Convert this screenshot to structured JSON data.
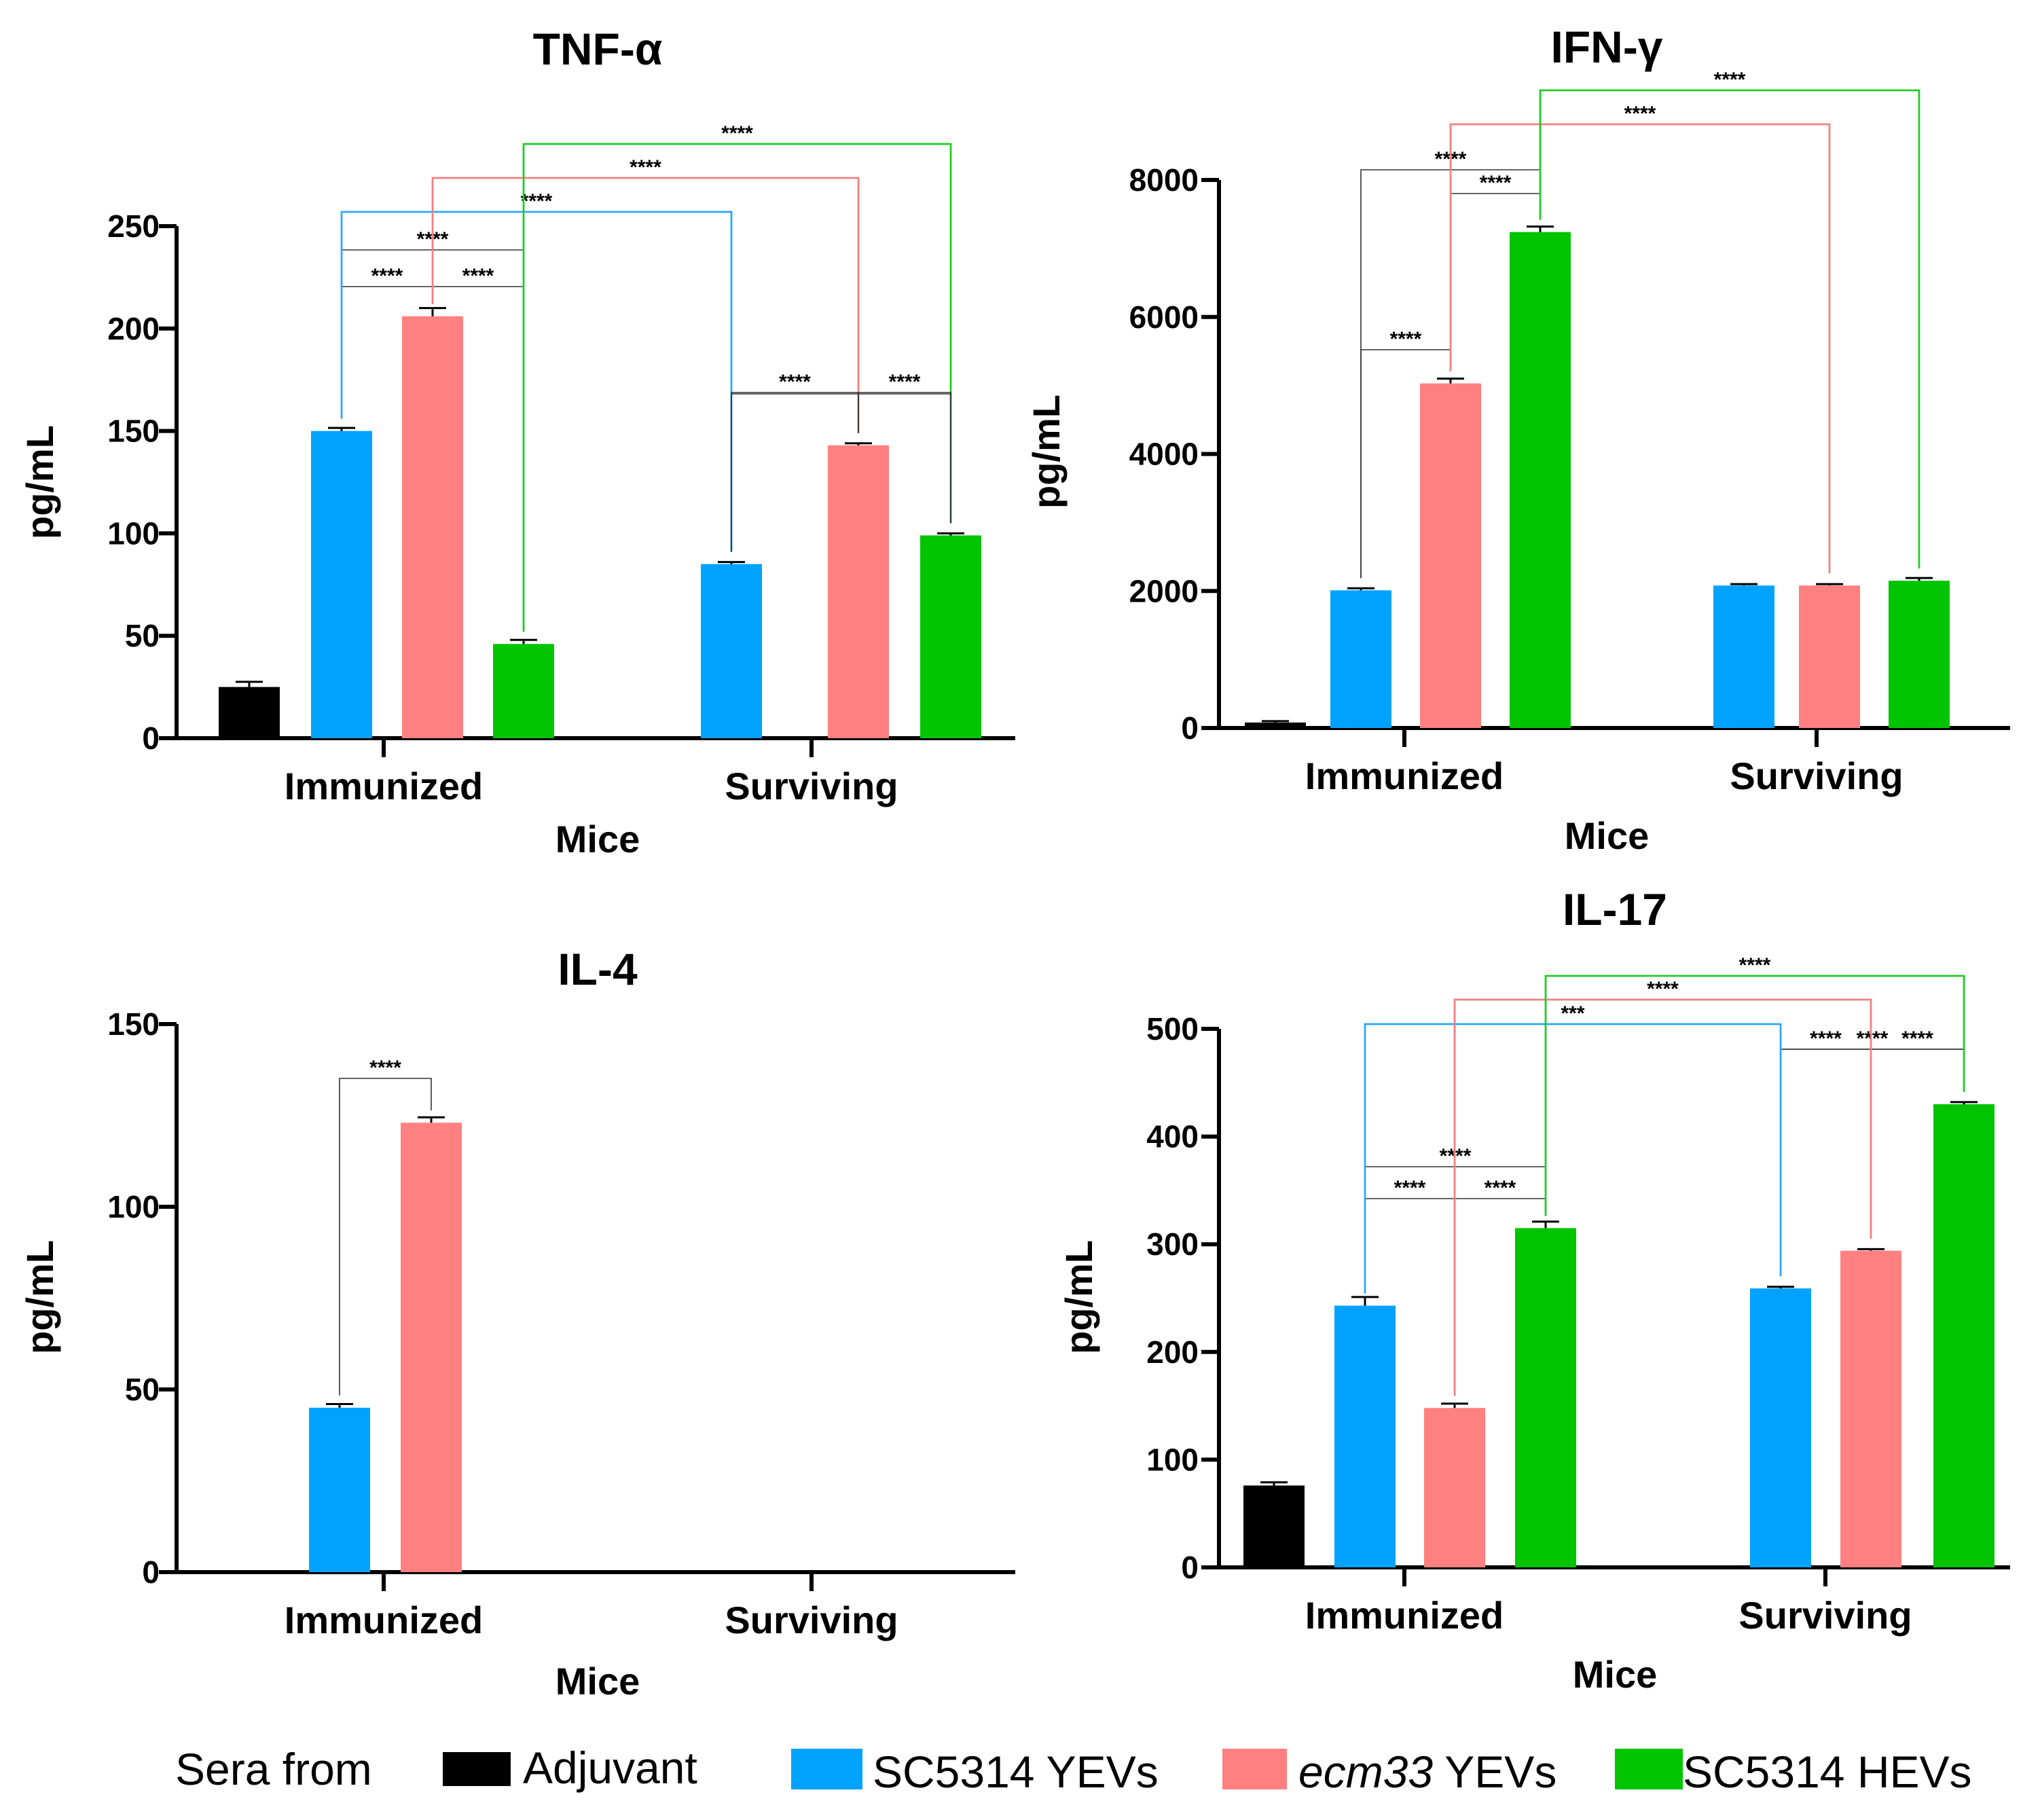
{
  "chart_data": [
    {
      "type": "bar",
      "title": "TNF-α",
      "xlabel": "Mice",
      "ylabel": "pg/mL",
      "ylim": [
        0,
        250
      ],
      "yticks": [
        0,
        50,
        100,
        150,
        200,
        250
      ],
      "groups": [
        {
          "label": "Immunized",
          "bars": [
            {
              "series": "Adjuvant",
              "value": 25,
              "err": 2.5
            },
            {
              "series": "SC5314 YEVs",
              "value": 150,
              "err": 1.5
            },
            {
              "series": "ecm33 YEVs",
              "value": 206,
              "err": 4
            },
            {
              "series": "SC5314 HEVs",
              "value": 46,
              "err": 2
            }
          ]
        },
        {
          "label": "Surviving",
          "bars": [
            {
              "series": "SC5314 YEVs",
              "value": 85,
              "err": 1
            },
            {
              "series": "ecm33 YEVs",
              "value": 143,
              "err": 1
            },
            {
              "series": "SC5314 HEVs",
              "value": 99,
              "err": 1
            }
          ]
        }
      ],
      "comparisons": [
        {
          "from": [
            0,
            1
          ],
          "to": [
            0,
            2
          ],
          "label": "****",
          "color": "black"
        },
        {
          "from": [
            0,
            2
          ],
          "to": [
            0,
            3
          ],
          "label": "****",
          "color": "black"
        },
        {
          "from": [
            0,
            1
          ],
          "to": [
            0,
            3
          ],
          "label": "****",
          "color": "black"
        },
        {
          "from": [
            0,
            1
          ],
          "to": [
            1,
            0
          ],
          "label": "****",
          "color": "blue"
        },
        {
          "from": [
            0,
            2
          ],
          "to": [
            1,
            1
          ],
          "label": "****",
          "color": "pink"
        },
        {
          "from": [
            0,
            3
          ],
          "to": [
            1,
            2
          ],
          "label": "****",
          "color": "green"
        },
        {
          "from": [
            1,
            0
          ],
          "to": [
            1,
            1
          ],
          "label": "****",
          "color": "black"
        },
        {
          "from": [
            1,
            1
          ],
          "to": [
            1,
            2
          ],
          "label": "****",
          "color": "black"
        },
        {
          "from": [
            1,
            0
          ],
          "to": [
            1,
            2
          ],
          "label": "",
          "color": "black"
        }
      ]
    },
    {
      "type": "bar",
      "title": "IFN-γ",
      "xlabel": "Mice",
      "ylabel": "pg/mL",
      "ylim": [
        0,
        8000
      ],
      "yticks": [
        0,
        2000,
        4000,
        6000,
        8000
      ],
      "groups": [
        {
          "label": "Immunized",
          "bars": [
            {
              "series": "Adjuvant",
              "value": 80,
              "err": 20
            },
            {
              "series": "SC5314 YEVs",
              "value": 2010,
              "err": 30
            },
            {
              "series": "ecm33 YEVs",
              "value": 5030,
              "err": 70
            },
            {
              "series": "SC5314 HEVs",
              "value": 7240,
              "err": 80
            }
          ]
        },
        {
          "label": "Surviving",
          "bars": [
            {
              "series": "SC5314 YEVs",
              "value": 2080,
              "err": 20
            },
            {
              "series": "ecm33 YEVs",
              "value": 2080,
              "err": 20
            },
            {
              "series": "SC5314 HEVs",
              "value": 2150,
              "err": 40
            }
          ]
        }
      ],
      "comparisons": [
        {
          "from": [
            0,
            1
          ],
          "to": [
            0,
            2
          ],
          "label": "****",
          "color": "black"
        },
        {
          "from": [
            0,
            2
          ],
          "to": [
            0,
            3
          ],
          "label": "****",
          "color": "black"
        },
        {
          "from": [
            0,
            1
          ],
          "to": [
            0,
            3
          ],
          "label": "****",
          "color": "black"
        },
        {
          "from": [
            0,
            2
          ],
          "to": [
            1,
            1
          ],
          "label": "****",
          "color": "pink"
        },
        {
          "from": [
            0,
            3
          ],
          "to": [
            1,
            2
          ],
          "label": "****",
          "color": "green"
        }
      ]
    },
    {
      "type": "bar",
      "title": "IL-4",
      "xlabel": "Mice",
      "ylabel": "pg/mL",
      "ylim": [
        0,
        150
      ],
      "yticks": [
        0,
        50,
        100,
        150
      ],
      "groups": [
        {
          "label": "Immunized",
          "bars": [
            {
              "series": "Adjuvant",
              "value": 0,
              "err": 0
            },
            {
              "series": "SC5314 YEVs",
              "value": 45,
              "err": 1
            },
            {
              "series": "ecm33 YEVs",
              "value": 123,
              "err": 1.5
            },
            {
              "series": "SC5314 HEVs",
              "value": 0,
              "err": 0
            }
          ]
        },
        {
          "label": "Surviving",
          "bars": [
            {
              "series": "SC5314 YEVs",
              "value": 0,
              "err": 0
            },
            {
              "series": "ecm33 YEVs",
              "value": 0,
              "err": 0
            },
            {
              "series": "SC5314 HEVs",
              "value": 0,
              "err": 0
            }
          ]
        }
      ],
      "comparisons": [
        {
          "from": [
            0,
            1
          ],
          "to": [
            0,
            2
          ],
          "label": "****",
          "color": "black"
        }
      ]
    },
    {
      "type": "bar",
      "title": "IL-17",
      "xlabel": "Mice",
      "ylabel": "pg/mL",
      "ylim": [
        0,
        500
      ],
      "yticks": [
        0,
        100,
        200,
        300,
        400,
        500
      ],
      "groups": [
        {
          "label": "Immunized",
          "bars": [
            {
              "series": "Adjuvant",
              "value": 76,
              "err": 3
            },
            {
              "series": "SC5314 YEVs",
              "value": 243,
              "err": 8
            },
            {
              "series": "ecm33 YEVs",
              "value": 148,
              "err": 4
            },
            {
              "series": "SC5314 HEVs",
              "value": 315,
              "err": 6
            }
          ]
        },
        {
          "label": "Surviving",
          "bars": [
            {
              "series": "SC5314 YEVs",
              "value": 259,
              "err": 1.5
            },
            {
              "series": "ecm33 YEVs",
              "value": 294,
              "err": 1.5
            },
            {
              "series": "SC5314 HEVs",
              "value": 430,
              "err": 2
            }
          ]
        }
      ],
      "comparisons": [
        {
          "from": [
            0,
            1
          ],
          "to": [
            0,
            2
          ],
          "label": "****",
          "color": "black"
        },
        {
          "from": [
            0,
            2
          ],
          "to": [
            0,
            3
          ],
          "label": "****",
          "color": "black"
        },
        {
          "from": [
            0,
            1
          ],
          "to": [
            0,
            3
          ],
          "label": "****",
          "color": "black"
        },
        {
          "from": [
            1,
            0
          ],
          "to": [
            1,
            1
          ],
          "label": "****",
          "color": "black"
        },
        {
          "from": [
            1,
            1
          ],
          "to": [
            1,
            2
          ],
          "label": "****",
          "color": "black"
        },
        {
          "from": [
            1,
            0
          ],
          "to": [
            1,
            2
          ],
          "label": "****",
          "color": "black"
        },
        {
          "from": [
            0,
            1
          ],
          "to": [
            1,
            0
          ],
          "label": "***",
          "color": "blue"
        },
        {
          "from": [
            0,
            2
          ],
          "to": [
            1,
            1
          ],
          "label": "****",
          "color": "pink"
        },
        {
          "from": [
            0,
            3
          ],
          "to": [
            1,
            2
          ],
          "label": "****",
          "color": "green"
        }
      ]
    }
  ],
  "legend": {
    "title": "Sera from",
    "items": [
      {
        "series": "Adjuvant",
        "label": "Adjuvant",
        "italic": "",
        "color": "#000000"
      },
      {
        "series": "SC5314 YEVs",
        "label": "SC5314 YEVs",
        "italic": "",
        "color": "#00a2ff"
      },
      {
        "series": "ecm33 YEVs",
        "label": " YEVs",
        "italic": "ecm33",
        "color": "#ff8080"
      },
      {
        "series": "SC5314 HEVs",
        "label": "SC5314 HEVs",
        "italic": "",
        "color": "#00c400"
      }
    ]
  },
  "colors": {
    "Adjuvant": "#000000",
    "SC5314 YEVs": "#00a2ff",
    "ecm33 YEVs": "#ff8080",
    "SC5314 HEVs": "#00c400",
    "blue": "#2aa7ff",
    "pink": "#f08080",
    "green": "#22cc22",
    "black": "#333333"
  }
}
